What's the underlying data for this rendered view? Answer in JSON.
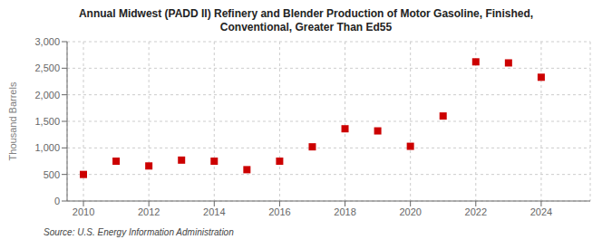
{
  "chart_data": {
    "type": "scatter",
    "title": "Annual Midwest (PADD II) Refinery and Blender Production of Motor Gasoline, Finished,\nConventional, Greater Than Ed55",
    "ylabel": "Thousand Barrels",
    "annotations": [
      "Source: U.S. Energy Information Administration"
    ],
    "x": [
      2010,
      2011,
      2012,
      2013,
      2014,
      2015,
      2016,
      2017,
      2018,
      2019,
      2020,
      2021,
      2022,
      2023,
      2024
    ],
    "values": [
      500,
      750,
      660,
      770,
      750,
      590,
      750,
      1020,
      1360,
      1320,
      1030,
      1600,
      2620,
      2600,
      2330
    ],
    "color": "#cc0000",
    "marker": "square",
    "xlim": [
      2009.5,
      2025.5
    ],
    "xticks": [
      2010,
      2012,
      2014,
      2016,
      2018,
      2020,
      2022,
      2024
    ],
    "ylim": [
      0,
      3000
    ],
    "yticks": [
      0,
      500,
      {
        "value": 1000,
        "label": "1,000"
      },
      {
        "value": 1500,
        "label": "1,500"
      },
      {
        "value": 2000,
        "label": "2,000"
      },
      {
        "value": 2500,
        "label": "2,500"
      },
      {
        "value": 3000,
        "label": "3,000"
      }
    ],
    "grid": true
  }
}
